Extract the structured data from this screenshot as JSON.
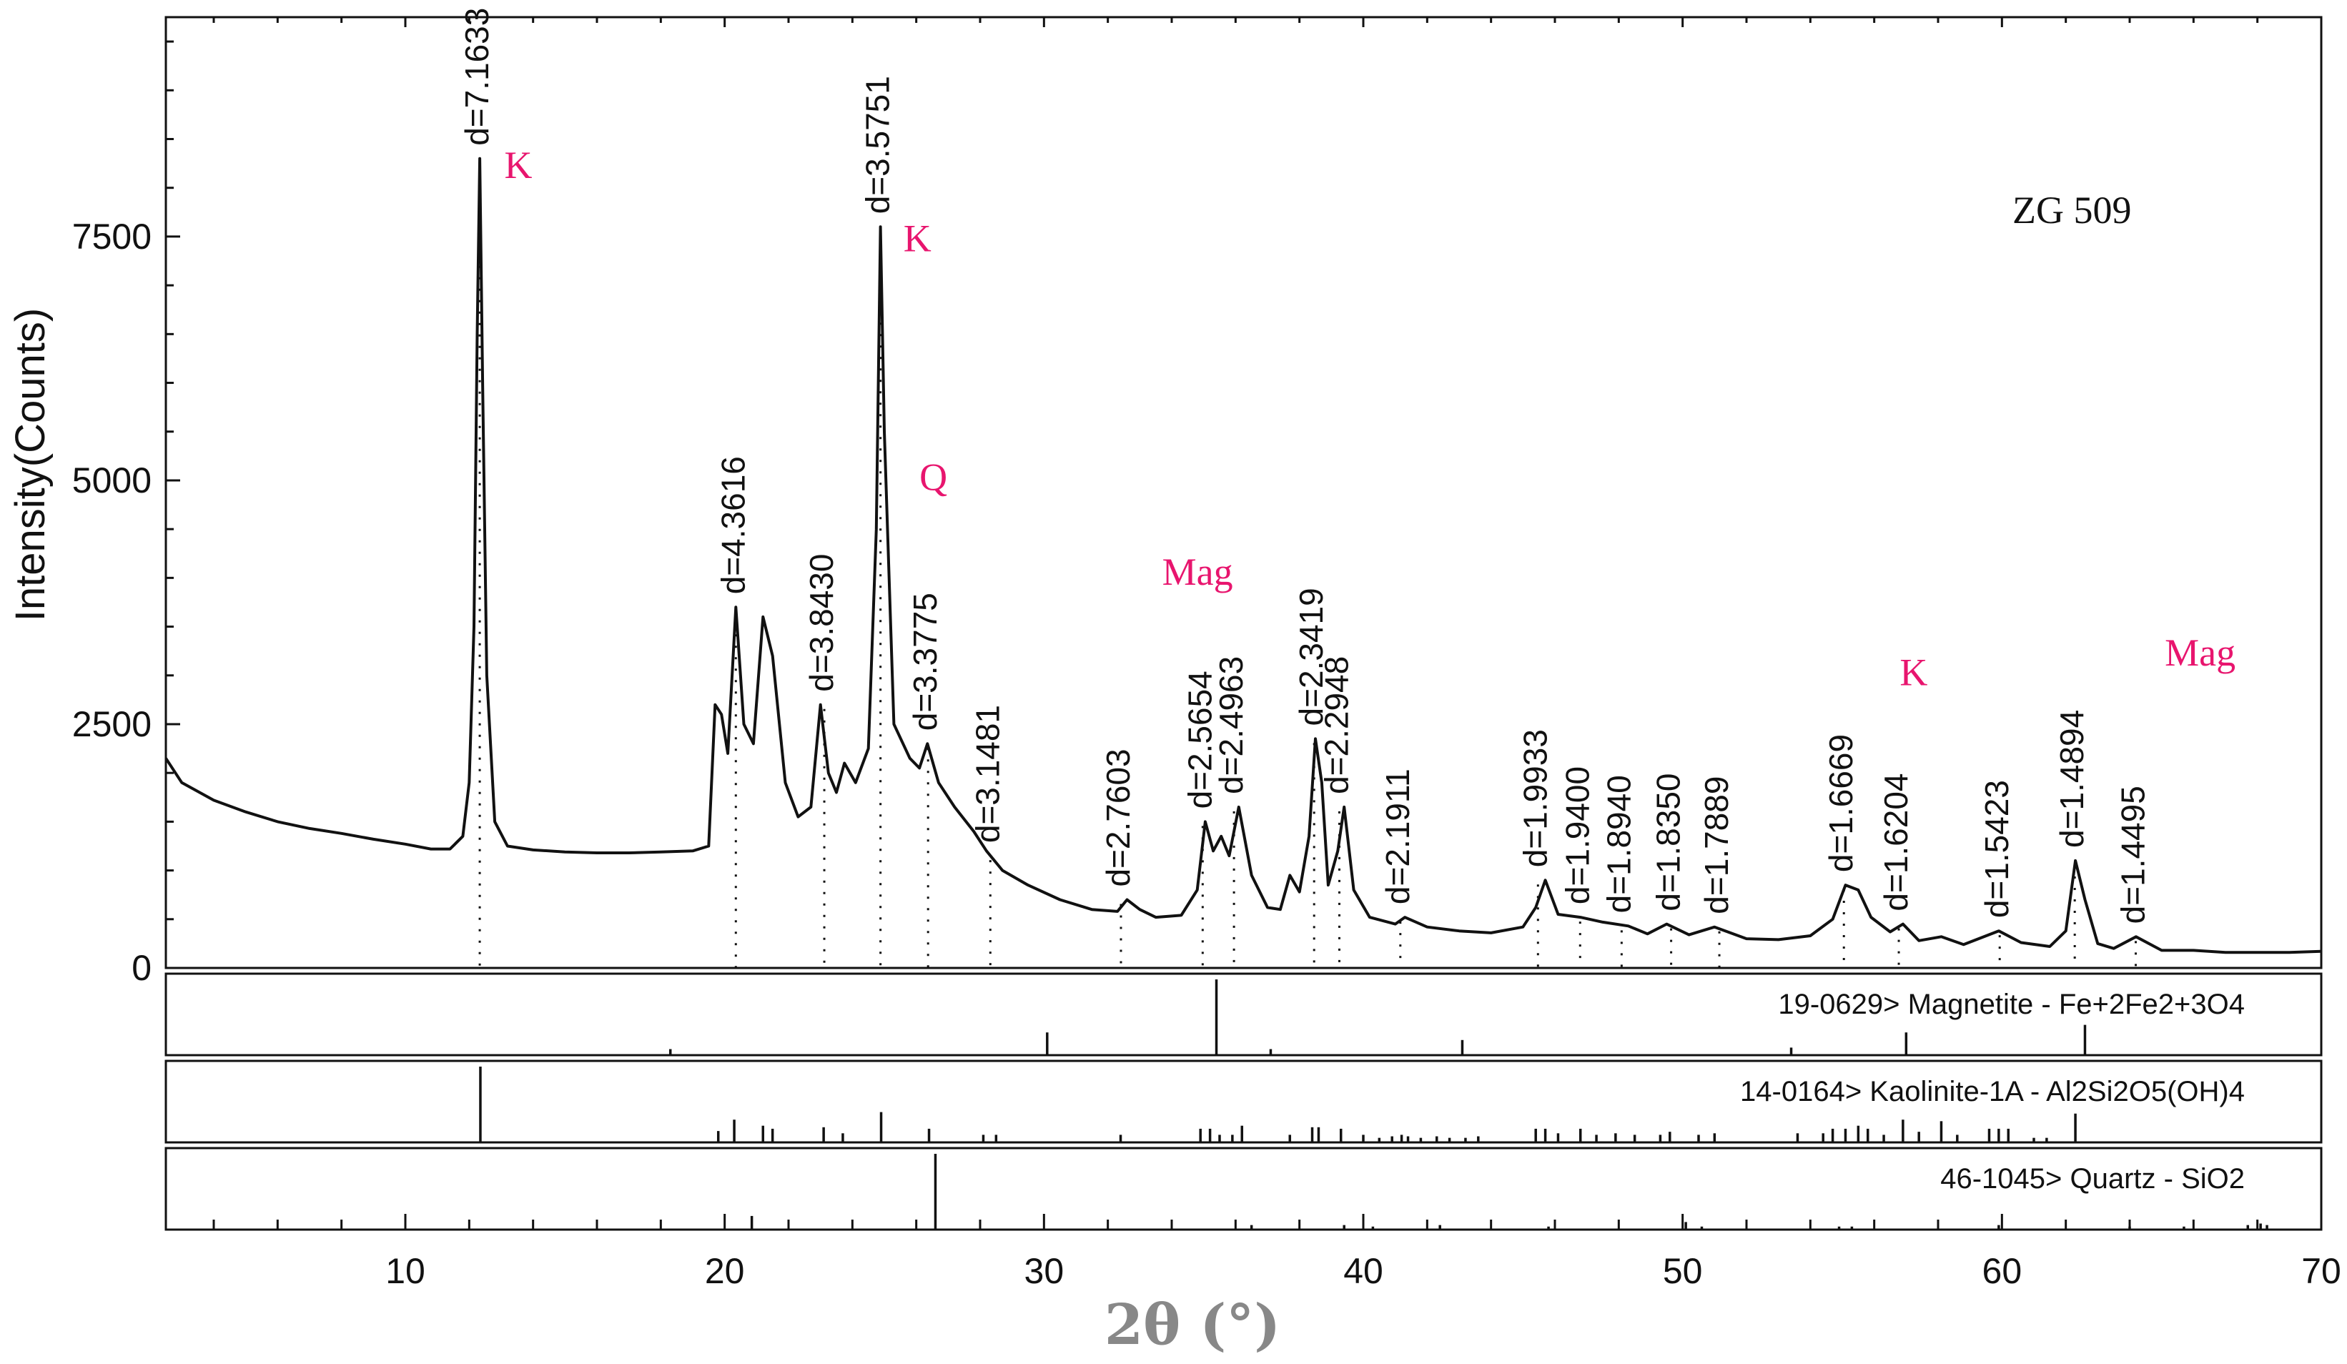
{
  "chart_data": {
    "type": "line",
    "title": "",
    "sample_label": "ZG 509",
    "xlabel": "2θ (°)",
    "ylabel": "Intensity(Counts)",
    "xlim": [
      2.5,
      70
    ],
    "ylim": [
      0,
      9750
    ],
    "x_ticks": [
      10,
      20,
      30,
      40,
      50,
      60,
      70
    ],
    "y_ticks": [
      0,
      2500,
      5000,
      7500
    ],
    "grid": false,
    "series": [
      {
        "values_xy": [
          [
            2.5,
            2150
          ],
          [
            3,
            1900
          ],
          [
            4,
            1720
          ],
          [
            5,
            1600
          ],
          [
            6,
            1500
          ],
          [
            7,
            1430
          ],
          [
            8,
            1380
          ],
          [
            9,
            1320
          ],
          [
            10,
            1270
          ],
          [
            10.8,
            1220
          ],
          [
            11.4,
            1220
          ],
          [
            11.8,
            1350
          ],
          [
            12.0,
            1900
          ],
          [
            12.15,
            3500
          ],
          [
            12.25,
            6500
          ],
          [
            12.33,
            8300
          ],
          [
            12.42,
            6000
          ],
          [
            12.55,
            3000
          ],
          [
            12.8,
            1500
          ],
          [
            13.2,
            1250
          ],
          [
            14,
            1210
          ],
          [
            15,
            1190
          ],
          [
            16,
            1180
          ],
          [
            17,
            1180
          ],
          [
            18,
            1190
          ],
          [
            19,
            1200
          ],
          [
            19.5,
            1250
          ],
          [
            19.7,
            2700
          ],
          [
            19.9,
            2600
          ],
          [
            20.1,
            2200
          ],
          [
            20.35,
            3700
          ],
          [
            20.6,
            2500
          ],
          [
            20.9,
            2300
          ],
          [
            21.2,
            3600
          ],
          [
            21.5,
            3200
          ],
          [
            21.9,
            1900
          ],
          [
            22.3,
            1550
          ],
          [
            22.7,
            1650
          ],
          [
            23.0,
            2700
          ],
          [
            23.25,
            2000
          ],
          [
            23.5,
            1800
          ],
          [
            23.75,
            2100
          ],
          [
            24.1,
            1900
          ],
          [
            24.5,
            2250
          ],
          [
            24.75,
            4500
          ],
          [
            24.88,
            7600
          ],
          [
            25.0,
            5500
          ],
          [
            25.3,
            2500
          ],
          [
            25.8,
            2150
          ],
          [
            26.1,
            2050
          ],
          [
            26.35,
            2300
          ],
          [
            26.7,
            1900
          ],
          [
            27.2,
            1650
          ],
          [
            27.8,
            1400
          ],
          [
            28.2,
            1200
          ],
          [
            28.7,
            1000
          ],
          [
            29.5,
            850
          ],
          [
            30.5,
            700
          ],
          [
            31.5,
            600
          ],
          [
            32.3,
            580
          ],
          [
            32.6,
            700
          ],
          [
            33.0,
            600
          ],
          [
            33.5,
            520
          ],
          [
            34.3,
            540
          ],
          [
            34.8,
            800
          ],
          [
            35.05,
            1500
          ],
          [
            35.3,
            1200
          ],
          [
            35.55,
            1350
          ],
          [
            35.8,
            1150
          ],
          [
            36.1,
            1650
          ],
          [
            36.5,
            950
          ],
          [
            37.0,
            620
          ],
          [
            37.4,
            600
          ],
          [
            37.7,
            950
          ],
          [
            38.0,
            780
          ],
          [
            38.3,
            1350
          ],
          [
            38.5,
            2350
          ],
          [
            38.7,
            1900
          ],
          [
            38.9,
            850
          ],
          [
            39.2,
            1200
          ],
          [
            39.4,
            1650
          ],
          [
            39.7,
            800
          ],
          [
            40.2,
            520
          ],
          [
            41.0,
            450
          ],
          [
            41.3,
            520
          ],
          [
            42.0,
            420
          ],
          [
            43.0,
            380
          ],
          [
            44.0,
            360
          ],
          [
            45.0,
            420
          ],
          [
            45.4,
            620
          ],
          [
            45.7,
            900
          ],
          [
            46.1,
            550
          ],
          [
            46.8,
            520
          ],
          [
            47.5,
            470
          ],
          [
            48.3,
            430
          ],
          [
            48.9,
            350
          ],
          [
            49.5,
            450
          ],
          [
            50.2,
            340
          ],
          [
            51.0,
            420
          ],
          [
            52.0,
            300
          ],
          [
            53.0,
            290
          ],
          [
            54.0,
            330
          ],
          [
            54.7,
            500
          ],
          [
            55.1,
            850
          ],
          [
            55.5,
            800
          ],
          [
            55.9,
            520
          ],
          [
            56.5,
            370
          ],
          [
            56.9,
            450
          ],
          [
            57.4,
            280
          ],
          [
            58.1,
            320
          ],
          [
            58.8,
            240
          ],
          [
            59.9,
            380
          ],
          [
            60.6,
            260
          ],
          [
            61.5,
            220
          ],
          [
            62.0,
            380
          ],
          [
            62.3,
            1100
          ],
          [
            62.6,
            700
          ],
          [
            63.0,
            250
          ],
          [
            63.5,
            200
          ],
          [
            64.2,
            320
          ],
          [
            65.0,
            180
          ],
          [
            66.0,
            180
          ],
          [
            67.0,
            160
          ],
          [
            68.0,
            160
          ],
          [
            69.0,
            160
          ],
          [
            70.0,
            170
          ]
        ]
      }
    ],
    "d_annotations": [
      {
        "x": 12.33,
        "y": 8300,
        "label": "d=7.1633"
      },
      {
        "x": 20.35,
        "y": 3700,
        "label": "d=4.3616"
      },
      {
        "x": 23.12,
        "y": 2700,
        "label": "d=3.8430"
      },
      {
        "x": 24.88,
        "y": 7600,
        "label": "d=3.5751"
      },
      {
        "x": 26.37,
        "y": 2300,
        "label": "d=3.3775"
      },
      {
        "x": 28.32,
        "y": 1150,
        "label": "d=3.1481"
      },
      {
        "x": 32.41,
        "y": 700,
        "label": "d=2.7603"
      },
      {
        "x": 34.97,
        "y": 1500,
        "label": "d=2.5654"
      },
      {
        "x": 35.95,
        "y": 1650,
        "label": "d=2.4963"
      },
      {
        "x": 38.46,
        "y": 2350,
        "label": "d=2.3419"
      },
      {
        "x": 39.25,
        "y": 1650,
        "label": "d=2.2948"
      },
      {
        "x": 41.16,
        "y": 520,
        "label": "d=2.1911"
      },
      {
        "x": 45.47,
        "y": 900,
        "label": "d=1.9933"
      },
      {
        "x": 46.79,
        "y": 520,
        "label": "d=1.9400"
      },
      {
        "x": 48.09,
        "y": 430,
        "label": "d=1.8940"
      },
      {
        "x": 49.64,
        "y": 450,
        "label": "d=1.8350"
      },
      {
        "x": 51.15,
        "y": 420,
        "label": "d=1.7889"
      },
      {
        "x": 55.05,
        "y": 850,
        "label": "d=1.6669"
      },
      {
        "x": 56.77,
        "y": 450,
        "label": "d=1.6204"
      },
      {
        "x": 59.93,
        "y": 380,
        "label": "d=1.5423"
      },
      {
        "x": 62.28,
        "y": 1100,
        "label": "d=1.4894"
      },
      {
        "x": 64.19,
        "y": 320,
        "label": "d=1.4495"
      }
    ],
    "phase_labels": [
      {
        "text": "K",
        "x": 13.1,
        "y": 8100
      },
      {
        "text": "K",
        "x": 25.6,
        "y": 7350
      },
      {
        "text": "Q",
        "x": 26.1,
        "y": 4900
      },
      {
        "text": "Mag",
        "x": 33.7,
        "y": 3930
      },
      {
        "text": "K",
        "x": 56.8,
        "y": 2900
      },
      {
        "text": "Mag",
        "x": 65.1,
        "y": 3100
      }
    ],
    "reference_patterns": [
      {
        "label": "19-0629> Magnetite - Fe+2Fe2+3O4",
        "sticks": [
          [
            18.3,
            8
          ],
          [
            30.1,
            30
          ],
          [
            35.4,
            100
          ],
          [
            37.1,
            8
          ],
          [
            43.1,
            20
          ],
          [
            53.4,
            10
          ],
          [
            57.0,
            30
          ],
          [
            62.6,
            40
          ]
        ]
      },
      {
        "label": "14-0164> Kaolinite-1A - Al2Si2O5(OH)4",
        "sticks": [
          [
            12.35,
            100
          ],
          [
            19.8,
            15
          ],
          [
            20.3,
            30
          ],
          [
            21.2,
            22
          ],
          [
            21.5,
            18
          ],
          [
            23.1,
            20
          ],
          [
            23.7,
            12
          ],
          [
            24.9,
            40
          ],
          [
            26.4,
            18
          ],
          [
            28.1,
            10
          ],
          [
            28.5,
            10
          ],
          [
            32.4,
            10
          ],
          [
            34.9,
            18
          ],
          [
            35.2,
            18
          ],
          [
            35.5,
            10
          ],
          [
            35.9,
            10
          ],
          [
            36.2,
            22
          ],
          [
            37.7,
            10
          ],
          [
            38.4,
            20
          ],
          [
            38.6,
            20
          ],
          [
            39.3,
            18
          ],
          [
            40.0,
            10
          ],
          [
            40.5,
            6
          ],
          [
            40.9,
            8
          ],
          [
            41.2,
            10
          ],
          [
            41.4,
            8
          ],
          [
            41.8,
            6
          ],
          [
            42.3,
            8
          ],
          [
            42.7,
            6
          ],
          [
            43.2,
            6
          ],
          [
            43.6,
            8
          ],
          [
            45.4,
            18
          ],
          [
            45.7,
            18
          ],
          [
            46.1,
            12
          ],
          [
            46.8,
            18
          ],
          [
            47.3,
            10
          ],
          [
            47.9,
            12
          ],
          [
            48.5,
            10
          ],
          [
            49.3,
            10
          ],
          [
            49.6,
            14
          ],
          [
            50.5,
            10
          ],
          [
            51.0,
            12
          ],
          [
            53.6,
            12
          ],
          [
            54.4,
            12
          ],
          [
            54.7,
            18
          ],
          [
            55.1,
            18
          ],
          [
            55.5,
            22
          ],
          [
            55.8,
            18
          ],
          [
            56.3,
            10
          ],
          [
            56.9,
            30
          ],
          [
            57.4,
            14
          ],
          [
            58.1,
            28
          ],
          [
            58.6,
            10
          ],
          [
            59.6,
            18
          ],
          [
            59.9,
            18
          ],
          [
            60.2,
            18
          ],
          [
            61.0,
            6
          ],
          [
            61.4,
            6
          ],
          [
            62.3,
            38
          ]
        ]
      },
      {
        "label": "46-1045> Quartz - SiO2",
        "sticks": [
          [
            20.85,
            18
          ],
          [
            26.6,
            100
          ],
          [
            36.5,
            6
          ],
          [
            39.4,
            6
          ],
          [
            40.3,
            4
          ],
          [
            42.4,
            6
          ],
          [
            45.8,
            4
          ],
          [
            50.1,
            10
          ],
          [
            50.6,
            4
          ],
          [
            54.9,
            4
          ],
          [
            55.3,
            4
          ],
          [
            59.9,
            6
          ],
          [
            64.0,
            4
          ],
          [
            65.7,
            4
          ],
          [
            67.7,
            6
          ],
          [
            68.1,
            8
          ],
          [
            68.3,
            6
          ]
        ]
      }
    ]
  }
}
